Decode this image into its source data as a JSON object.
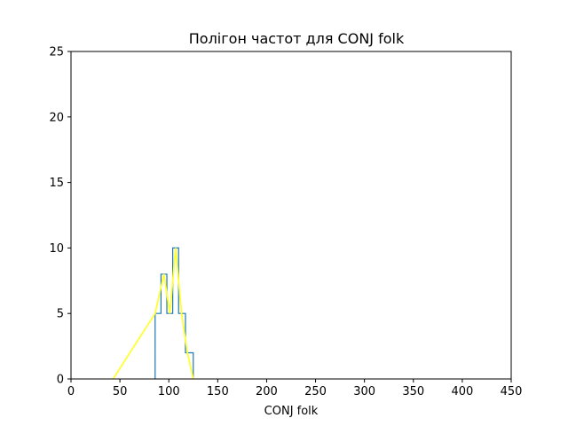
{
  "chart_data": {
    "type": "line",
    "title": "Полігон частот для CONJ folk",
    "xlabel": "CONJ folk",
    "ylabel": "",
    "xlim": [
      0,
      450
    ],
    "ylim": [
      0,
      25
    ],
    "xticks": [
      0,
      50,
      100,
      150,
      200,
      250,
      300,
      350,
      400,
      450
    ],
    "yticks": [
      0,
      5,
      10,
      15,
      20,
      25
    ],
    "grid": false,
    "colors": {
      "histogram": "#1f77b4",
      "polygon": "#ffff33"
    },
    "series": [
      {
        "kind": "step-histogram",
        "bins": [
          {
            "x0": 86,
            "x1": 92,
            "count": 5
          },
          {
            "x0": 92,
            "x1": 98,
            "count": 8
          },
          {
            "x0": 98,
            "x1": 104,
            "count": 5
          },
          {
            "x0": 104,
            "x1": 110,
            "count": 10
          },
          {
            "x0": 110,
            "x1": 117,
            "count": 5
          },
          {
            "x0": 117,
            "x1": 125,
            "count": 2
          }
        ]
      },
      {
        "kind": "polygon",
        "x": [
          43,
          86,
          95,
          101,
          107,
          113,
          119,
          125
        ],
        "y": [
          0,
          5,
          8,
          5,
          10,
          5,
          2,
          0
        ]
      }
    ]
  }
}
